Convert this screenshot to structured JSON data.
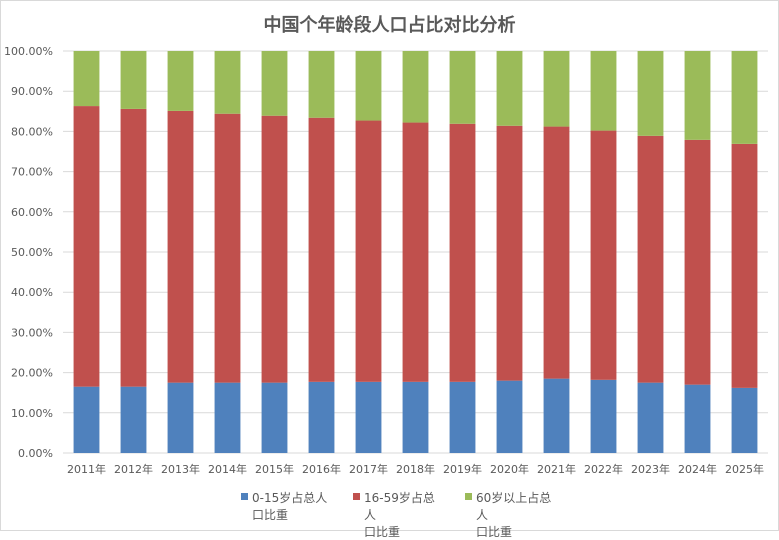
{
  "chart_data": {
    "type": "bar",
    "stacked": true,
    "title": "中国个年龄段人口占比对比分析",
    "categories": [
      "2011年",
      "2012年",
      "2013年",
      "2014年",
      "2015年",
      "2016年",
      "2017年",
      "2018年",
      "2019年",
      "2020年",
      "2021年",
      "2022年",
      "2023年",
      "2024年",
      "2025年"
    ],
    "series": [
      {
        "name": "0-15岁占总人口比重",
        "color": "#4f81bd",
        "values": [
          16.5,
          16.5,
          17.5,
          17.5,
          17.5,
          17.7,
          17.7,
          17.7,
          17.7,
          18.0,
          18.5,
          18.2,
          17.5,
          17.0,
          16.2
        ]
      },
      {
        "name": "16-59岁占总人口比重",
        "color": "#c0504d",
        "values": [
          69.8,
          69.1,
          67.6,
          66.9,
          66.4,
          65.7,
          65.0,
          64.5,
          64.2,
          63.4,
          62.7,
          62.0,
          61.4,
          60.9,
          60.7
        ]
      },
      {
        "name": "60岁以上占总人口比重",
        "color": "#9bbb59",
        "values": [
          13.7,
          14.4,
          14.9,
          15.6,
          16.1,
          16.6,
          17.3,
          17.8,
          18.1,
          18.6,
          18.8,
          19.8,
          21.1,
          22.1,
          23.1
        ]
      }
    ],
    "yticks": [
      "0.00%",
      "10.00%",
      "20.00%",
      "30.00%",
      "40.00%",
      "50.00%",
      "60.00%",
      "70.00%",
      "80.00%",
      "90.00%",
      "100.00%"
    ],
    "ylim": [
      0,
      100
    ],
    "grid": true,
    "legend": "bottom",
    "legend_lines": [
      [
        "0-15岁占总人",
        "口比重"
      ],
      [
        "16-59岁占总人",
        "口比重"
      ],
      [
        "60岁以上占总人",
        "口比重"
      ]
    ]
  }
}
